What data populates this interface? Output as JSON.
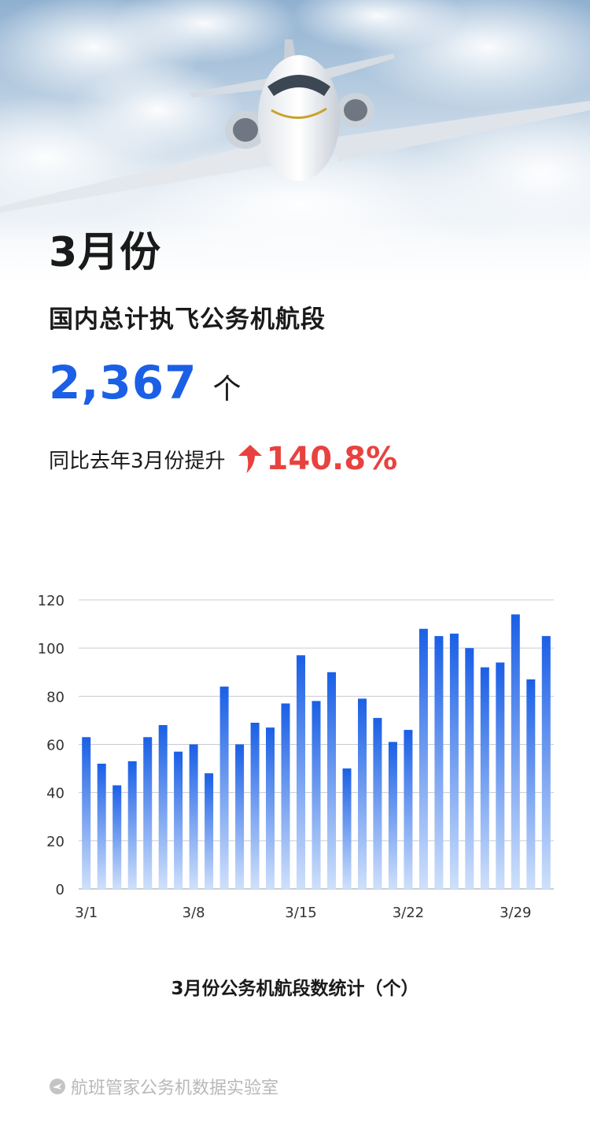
{
  "header": {
    "title": "3月份",
    "subtitle": "国内总计执飞公务机航段",
    "total_value": "2,367",
    "total_unit": "个",
    "growth_label": "同比去年3月份提升",
    "growth_value": "140.8%",
    "growth_icon": "arrow-up-icon"
  },
  "colors": {
    "accent_blue": "#1a5fe6",
    "growth_red": "#e8423f",
    "bar_top": "#1a5fe6",
    "bar_bottom": "#cfe0fb"
  },
  "chart_data": {
    "type": "bar",
    "title": "3月份公务机航段数统计（个）",
    "xlabel": "",
    "ylabel": "",
    "ylim": [
      0,
      120
    ],
    "yticks": [
      0,
      20,
      40,
      60,
      80,
      100,
      120
    ],
    "grid": true,
    "categories": [
      "3/1",
      "3/2",
      "3/3",
      "3/4",
      "3/5",
      "3/6",
      "3/7",
      "3/8",
      "3/9",
      "3/10",
      "3/11",
      "3/12",
      "3/13",
      "3/14",
      "3/15",
      "3/16",
      "3/17",
      "3/18",
      "3/19",
      "3/20",
      "3/21",
      "3/22",
      "3/23",
      "3/24",
      "3/25",
      "3/26",
      "3/27",
      "3/28",
      "3/29",
      "3/30",
      "3/31"
    ],
    "xtick_labels": [
      "3/1",
      "3/8",
      "3/15",
      "3/22",
      "3/29"
    ],
    "values": [
      63,
      52,
      43,
      53,
      63,
      68,
      57,
      60,
      48,
      84,
      60,
      69,
      67,
      77,
      97,
      78,
      90,
      50,
      79,
      71,
      61,
      66,
      108,
      105,
      106,
      100,
      92,
      94,
      114,
      87,
      105
    ]
  },
  "footer": {
    "text": "航班管家公务机数据实验室",
    "icon": "plane-logo-icon"
  }
}
